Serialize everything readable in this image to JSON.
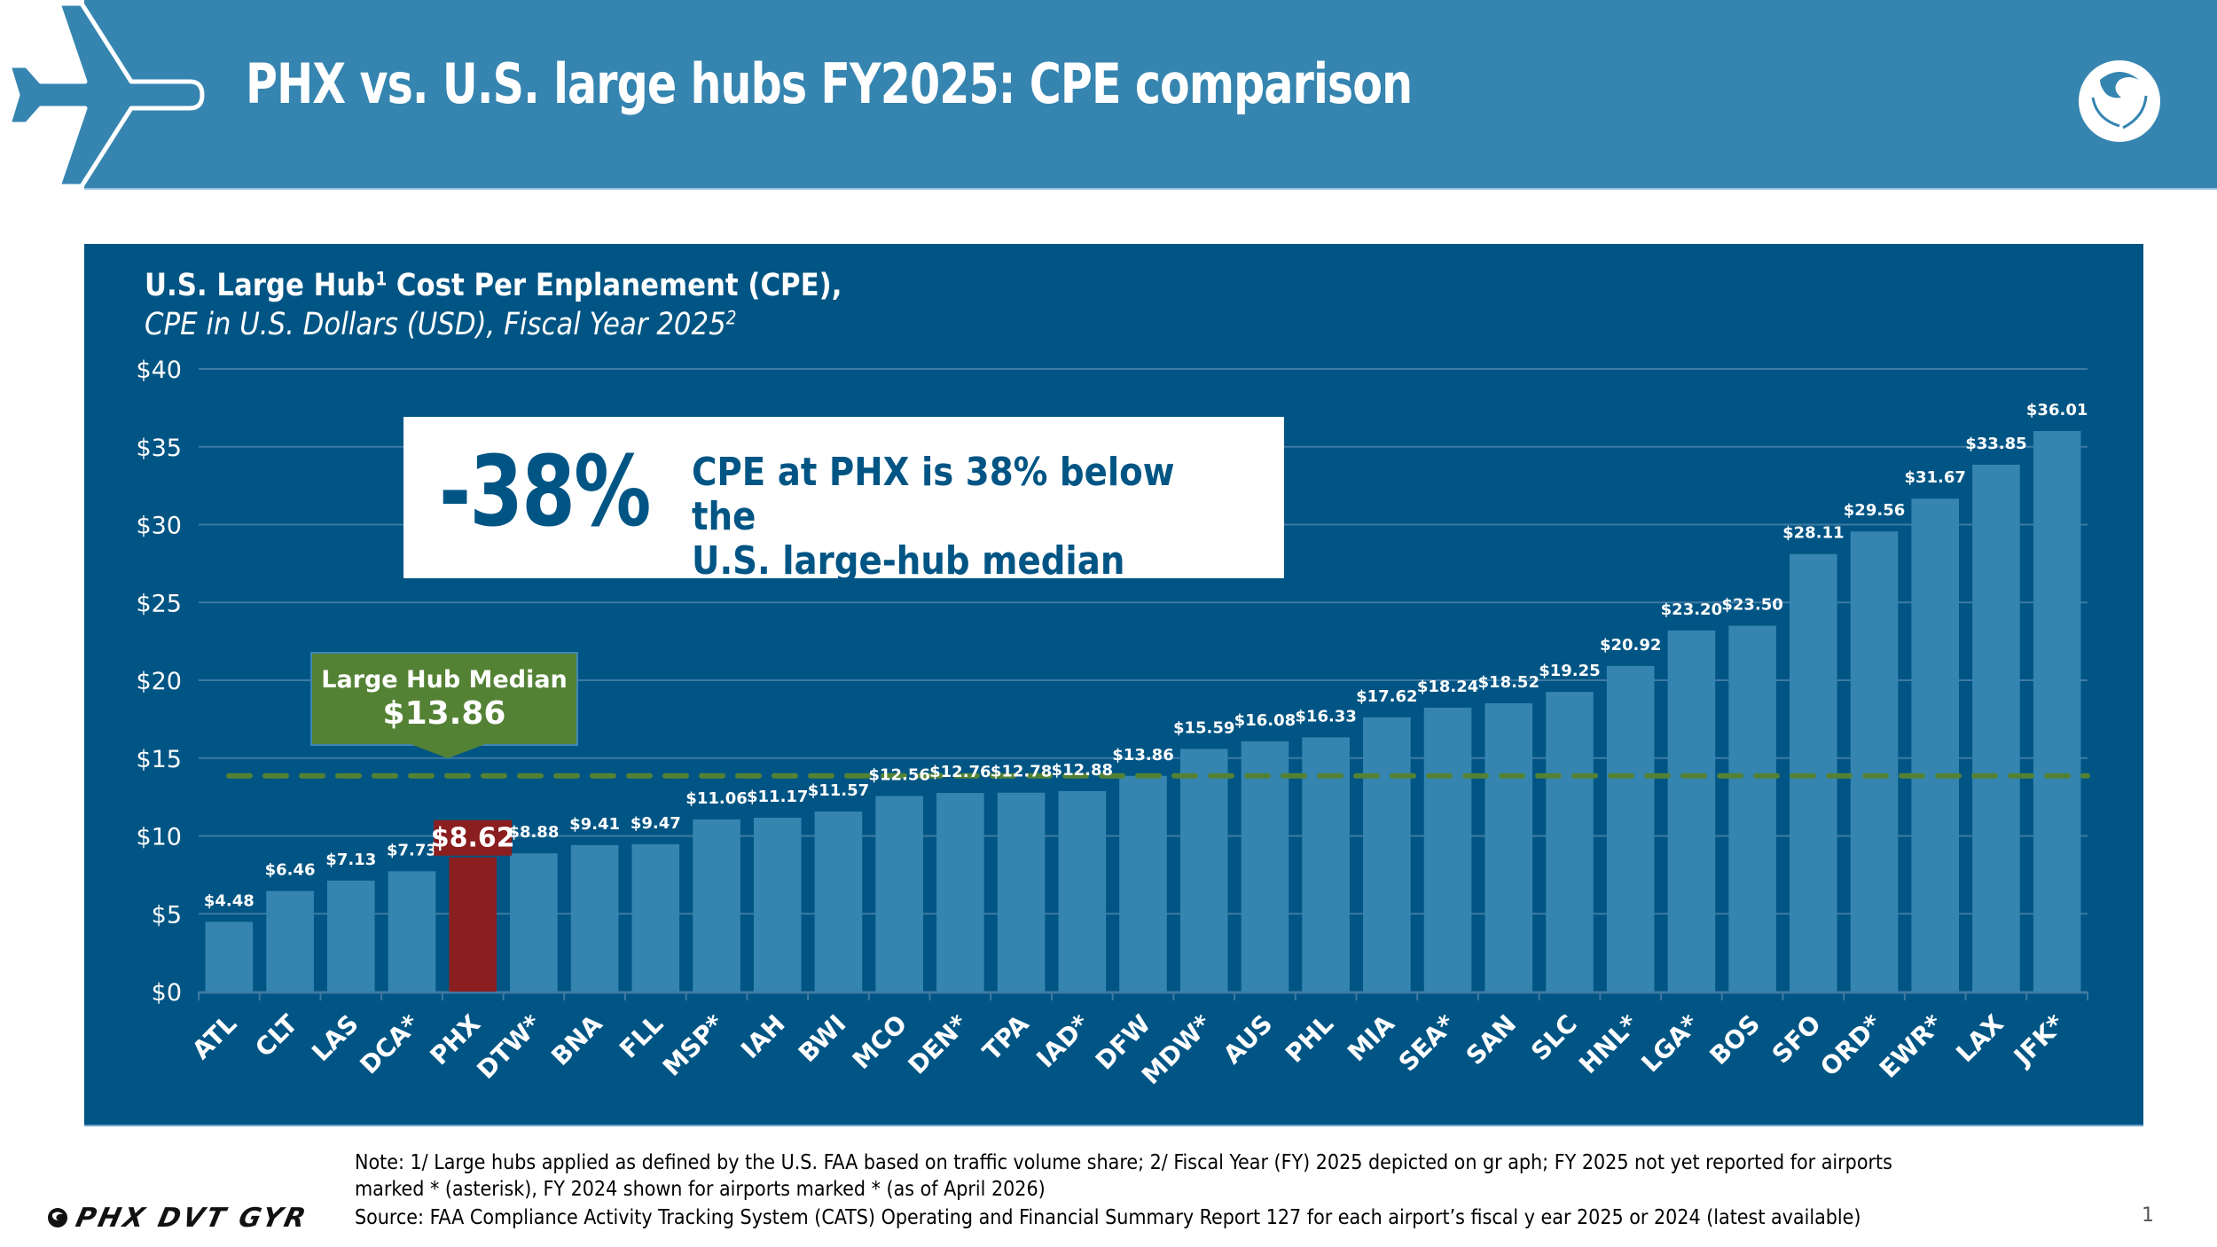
{
  "header": {
    "title": "PHX vs. U.S. large hubs FY2025: CPE comparison",
    "left_icon": "airplane-icon",
    "right_logo": "phoenix-bird-logo"
  },
  "colors": {
    "header_bg": "#3585b0",
    "panel_bg": "#005584",
    "bar": "#3585b0",
    "highlight_bar": "#8b1e1e",
    "median": "#548235",
    "text": "#ffffff"
  },
  "callout": {
    "big": "-38%",
    "line1": "CPE at PHX is 38% below the",
    "line2": "U.S. large-hub median"
  },
  "median_label": {
    "line1": "Large Hub Median",
    "line2": "$13.86"
  },
  "chart_data": {
    "type": "bar",
    "title": "U.S. Large Hub¹ Cost Per Enplanement (CPE),",
    "title_main": "U.S. Large Hub",
    "title_sup": "1",
    "title_tail": " Cost Per Enplanement (CPE),",
    "subtitle_main": "CPE in U.S. Dollars (USD), Fiscal Year 2025",
    "subtitle_sup": "2",
    "xlabel": "",
    "ylabel": "",
    "ylim": [
      0,
      40
    ],
    "yticks": [
      0,
      5,
      10,
      15,
      20,
      25,
      30,
      35,
      40
    ],
    "ytick_labels": [
      "$0",
      "$5",
      "$10",
      "$15",
      "$20",
      "$25",
      "$30",
      "$35",
      "$40"
    ],
    "grid": true,
    "legend": "none",
    "categories": [
      "ATL",
      "CLT",
      "LAS",
      "DCA*",
      "PHX",
      "DTW*",
      "BNA",
      "FLL",
      "MSP*",
      "IAH",
      "BWI",
      "MCO",
      "DEN*",
      "TPA",
      "IAD*",
      "DFW",
      "MDW*",
      "AUS",
      "PHL",
      "MIA",
      "SEA*",
      "SAN",
      "SLC",
      "HNL*",
      "LGA*",
      "BOS",
      "SFO",
      "ORD*",
      "EWR*",
      "LAX",
      "JFK*"
    ],
    "values": [
      4.48,
      6.46,
      7.13,
      7.73,
      8.62,
      8.88,
      9.41,
      9.47,
      11.06,
      11.17,
      11.57,
      12.56,
      12.76,
      12.78,
      12.88,
      13.86,
      15.59,
      16.08,
      16.33,
      17.62,
      18.24,
      18.52,
      19.25,
      20.92,
      23.2,
      23.5,
      28.11,
      29.56,
      31.67,
      33.85,
      36.01
    ],
    "value_labels": [
      "$4.48",
      "$6.46",
      "$7.13",
      "$7.73",
      "$8.62",
      "$8.88",
      "$9.41",
      "$9.47",
      "$11.06",
      "$11.17",
      "$11.57",
      "$12.56",
      "$12.76",
      "$12.78",
      "$12.88",
      "$13.86",
      "$15.59",
      "$16.08",
      "$16.33",
      "$17.62",
      "$18.24",
      "$18.52",
      "$19.25",
      "$20.92",
      "$23.20",
      "$23.50",
      "$28.11",
      "$29.56",
      "$31.67",
      "$33.85",
      "$36.01"
    ],
    "highlight": "PHX",
    "reference_line": {
      "label": "Large Hub Median",
      "value": 13.86,
      "style": "dashed"
    }
  },
  "footer": {
    "note_line1": "Note: 1/ Large hubs applied as defined by the U.S. FAA based on traffic volume share; 2/ Fiscal Year (FY) 2025 depicted on gr aph; FY 2025 not yet reported for airports",
    "note_line2": "marked * (asterisk), FY 2024 shown for airports marked * (as of April 2026)",
    "source": "Source: FAA Compliance Activity Tracking System (CATS) Operating and Financial Summary Report 127 for each airport’s fiscal y  ear 2025 or 2024 (latest available)",
    "page_number": "1",
    "brand": "PHX DVT GYR"
  }
}
